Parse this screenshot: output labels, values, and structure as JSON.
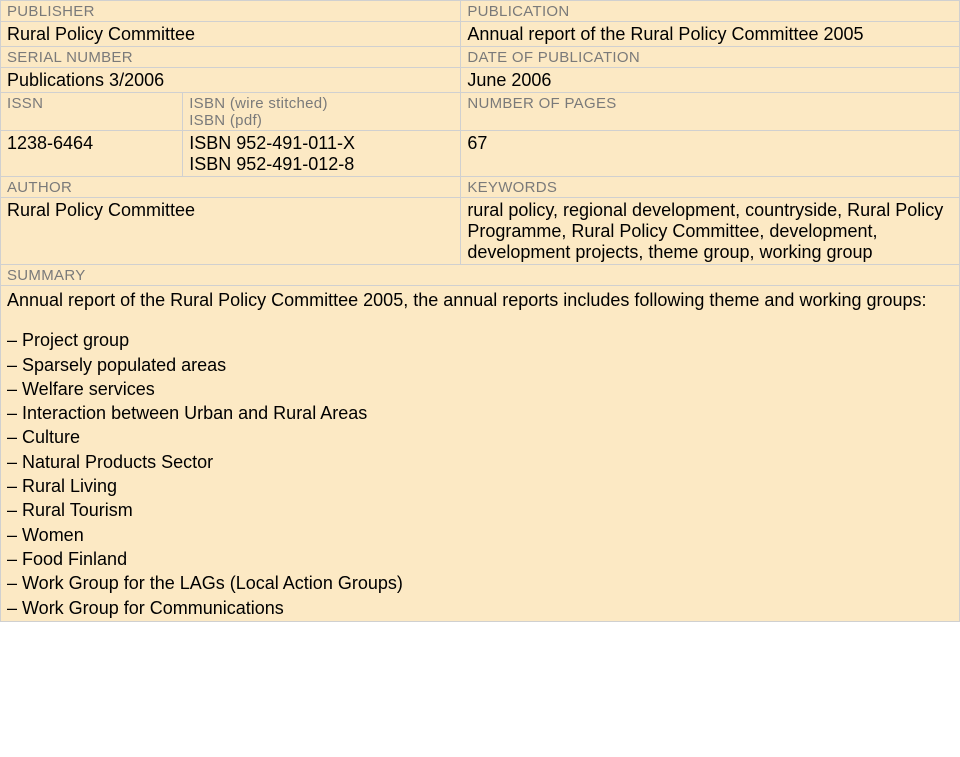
{
  "colors": {
    "bg": "#fce9c4",
    "border": "#d0d0d0",
    "label": "#7a7a7a",
    "text": "#000000"
  },
  "fields": {
    "publisher": {
      "label": "PUBLISHER",
      "value": "Rural Policy Committee"
    },
    "publication": {
      "label": "PUBLICATION",
      "value": "Annual report of the Rural Policy Committee 2005"
    },
    "serial": {
      "label": "SERIAL NUMBER",
      "value": "Publications 3/2006"
    },
    "date": {
      "label": "DATE OF PUBLICATION",
      "value": "June 2006"
    },
    "issn": {
      "label": "ISSN",
      "value": "1238-6464"
    },
    "isbn": {
      "label1": "ISBN (wire stitched)",
      "label2": "ISBN (pdf)",
      "value1": "ISBN 952-491-011-X",
      "value2": "ISBN 952-491-012-8"
    },
    "pages": {
      "label": "NUMBER OF PAGES",
      "value": "67"
    },
    "author": {
      "label": "AUTHOR",
      "value": "Rural Policy Committee"
    },
    "keywords": {
      "label": "KEYWORDS",
      "value": "rural policy, regional development, countryside, Rural Policy Programme, Rural Policy Committee, development, development projects, theme group, working group"
    }
  },
  "summary": {
    "label": "SUMMARY",
    "intro": "Annual report of the Rural Policy Committee 2005, the annual reports includes following theme and working groups:",
    "items": [
      "Project group",
      "Sparsely populated areas",
      "Welfare services",
      "Interaction between Urban and Rural Areas",
      "Culture",
      "Natural Products Sector",
      "Rural Living",
      "Rural Tourism",
      "Women",
      "Food Finland",
      "Work Group for the LAGs (Local Action Groups)",
      "Work Group for Communications"
    ]
  }
}
